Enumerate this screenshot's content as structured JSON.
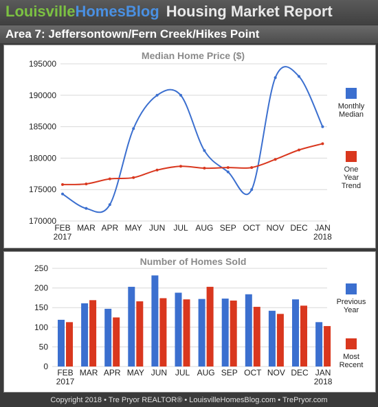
{
  "header": {
    "brand_part1": "Louisville",
    "brand_part2": "HomesBlog",
    "report_title": "Housing Market Report"
  },
  "area_title": "Area 7: Jeffersontown/Fern Creek/Hikes Point",
  "footer": {
    "copyright": "Copyright  2018  •  Tre Pryor REALTOR®  •  LouisvilleHomesBlog.com  •  TrePryor.com"
  },
  "colors": {
    "blue": "#3b6fcf",
    "red": "#d9371e",
    "grid": "#d8d8d8",
    "title": "#8a8a8a"
  },
  "chart_data": [
    {
      "type": "line",
      "title": "Median Home Price ($)",
      "categories": [
        "FEB",
        "MAR",
        "APR",
        "MAY",
        "JUN",
        "JUL",
        "AUG",
        "SEP",
        "OCT",
        "NOV",
        "DEC",
        "JAN"
      ],
      "category_sublabels": [
        "2017",
        "",
        "",
        "",
        "",
        "",
        "",
        "",
        "",
        "",
        "",
        "2018"
      ],
      "yticks": [
        "195000",
        "190000",
        "185000",
        "180000",
        "175000",
        "170000"
      ],
      "ylim": [
        170000,
        195000
      ],
      "series": [
        {
          "name": "Monthly Median",
          "values": [
            174300,
            172000,
            172600,
            184700,
            190000,
            190000,
            181200,
            177800,
            175000,
            192800,
            193000,
            185000
          ]
        },
        {
          "name": "One Year Trend",
          "values": [
            175800,
            175900,
            176700,
            176900,
            178100,
            178700,
            178400,
            178500,
            178500,
            179800,
            181300,
            182300
          ]
        }
      ],
      "legend": [
        {
          "lines": [
            "Monthly",
            "Median"
          ]
        },
        {
          "lines": [
            "One",
            "Year",
            "Trend"
          ]
        }
      ],
      "legend_position": "right",
      "grid": true
    },
    {
      "type": "bar",
      "title": "Number of Homes Sold",
      "categories": [
        "FEB",
        "MAR",
        "APR",
        "MAY",
        "JUN",
        "JUL",
        "AUG",
        "SEP",
        "OCT",
        "NOV",
        "DEC",
        "JAN"
      ],
      "category_sublabels": [
        "2017",
        "",
        "",
        "",
        "",
        "",
        "",
        "",
        "",
        "",
        "",
        "2018"
      ],
      "yticks": [
        "250",
        "200",
        "150",
        "100",
        "50",
        "0"
      ],
      "ylim": [
        0,
        250
      ],
      "series": [
        {
          "name": "Previous Year",
          "values": [
            119,
            161,
            147,
            203,
            232,
            188,
            172,
            173,
            184,
            142,
            171,
            113
          ]
        },
        {
          "name": "Most Recent",
          "values": [
            113,
            169,
            125,
            166,
            174,
            171,
            203,
            168,
            152,
            134,
            155,
            103
          ]
        }
      ],
      "legend": [
        {
          "lines": [
            "Previous",
            "Year"
          ]
        },
        {
          "lines": [
            "Most",
            "Recent"
          ]
        }
      ],
      "legend_position": "right",
      "grid": true
    }
  ]
}
